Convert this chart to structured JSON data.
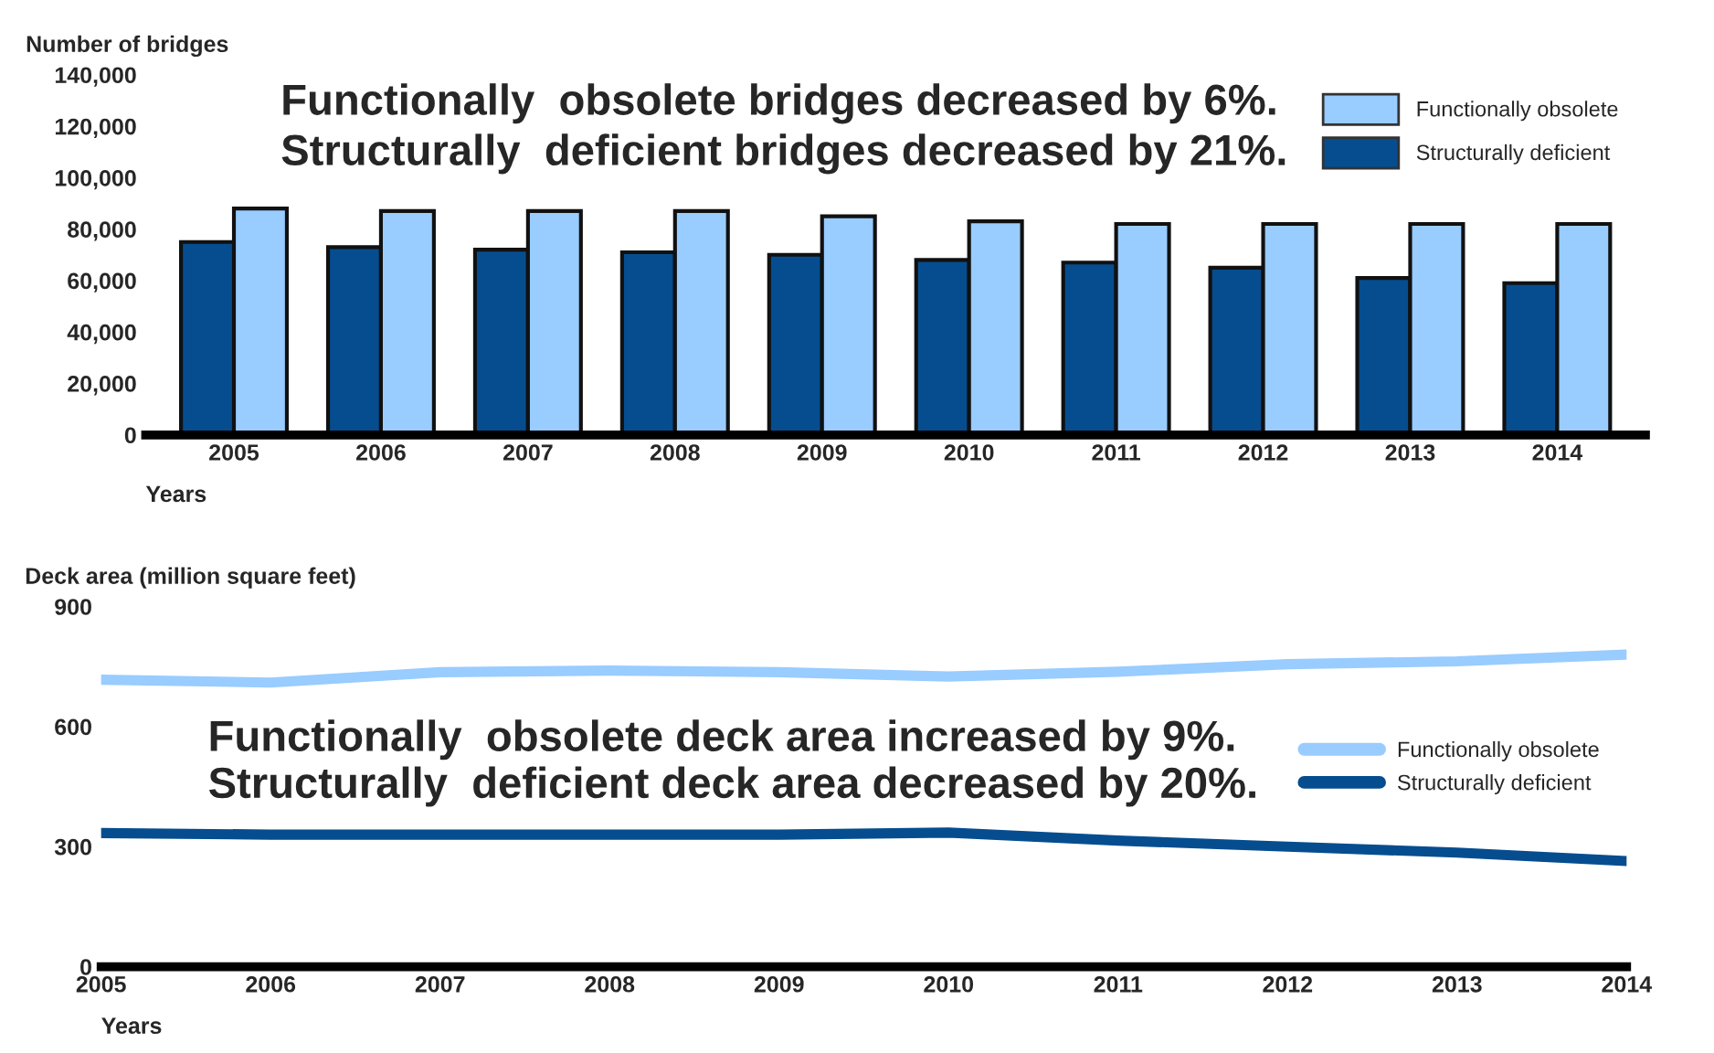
{
  "chart_data": [
    {
      "type": "bar",
      "ylabel": "Number of bridges",
      "xlabel": "Years",
      "categories": [
        "2005",
        "2006",
        "2007",
        "2008",
        "2009",
        "2010",
        "2011",
        "2012",
        "2013",
        "2014"
      ],
      "series": [
        {
          "name": "Structurally deficient",
          "color": "#054d8f",
          "values": [
            75000,
            73000,
            72000,
            71000,
            70000,
            68000,
            67000,
            65000,
            61000,
            59000
          ]
        },
        {
          "name": "Functionally obsolete",
          "color": "#99ccff",
          "values": [
            88000,
            87000,
            87000,
            87000,
            85000,
            83000,
            82000,
            82000,
            82000,
            82000
          ]
        }
      ],
      "ylim": [
        0,
        140000
      ],
      "yticks": [
        {
          "value": 0,
          "label": "0"
        },
        {
          "value": 20000,
          "label": "20,000"
        },
        {
          "value": 40000,
          "label": "40,000"
        },
        {
          "value": 60000,
          "label": "60,000"
        },
        {
          "value": 80000,
          "label": "80,000"
        },
        {
          "value": 100000,
          "label": "100,000"
        },
        {
          "value": 120000,
          "label": "120,000"
        },
        {
          "value": 140000,
          "label": "140,000"
        }
      ],
      "annotations": [
        "Functionally  obsolete bridges decreased by 6%.",
        "Structurally  deficient bridges decreased by 21%."
      ],
      "legend": "top right",
      "grid": false
    },
    {
      "type": "line",
      "ylabel": "Deck area (million square feet)",
      "xlabel": "Years",
      "x": [
        2005,
        2006,
        2007,
        2008,
        2009,
        2010,
        2011,
        2012,
        2013,
        2014
      ],
      "series": [
        {
          "name": "Functionally obsolete",
          "color": "#99ccff",
          "values": [
            717,
            710,
            736,
            740,
            736,
            725,
            737,
            756,
            763,
            780
          ]
        },
        {
          "name": "Structurally deficient",
          "color": "#054d8f",
          "values": [
            334,
            330,
            330,
            330,
            330,
            335,
            315,
            300,
            285,
            264
          ]
        }
      ],
      "xlim": [
        2005,
        2014
      ],
      "xticks": [
        2005,
        2006,
        2007,
        2008,
        2009,
        2010,
        2011,
        2012,
        2013,
        2014
      ],
      "ylim": [
        0,
        900
      ],
      "yticks": [
        0,
        300,
        600,
        900
      ],
      "annotations": [
        "Functionally  obsolete deck area increased by 9%.",
        "Structurally  deficient deck area decreased by 20%."
      ],
      "legend": "right",
      "grid": false,
      "marker": "none",
      "line_style": "solid"
    }
  ]
}
